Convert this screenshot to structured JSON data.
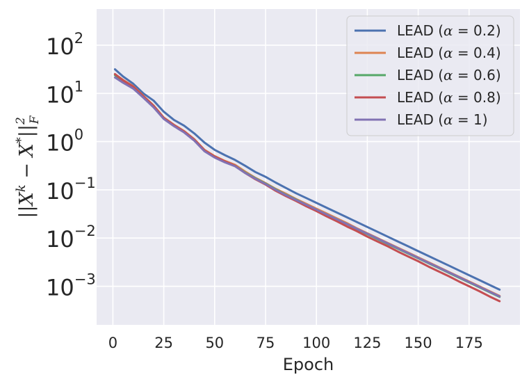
{
  "chart_data": {
    "type": "line",
    "title": "",
    "xlabel": "Epoch",
    "ylabel": "||X^k − X*||_F^2",
    "ylabel_parts": {
      "open": "||X",
      "k": "k",
      "minus": " − X",
      "star": "*",
      "close": "||",
      "sup": "2",
      "sub": "F"
    },
    "yscale": "log",
    "xlim": [
      -8,
      200
    ],
    "ylim_log10": [
      -3.8,
      2.75
    ],
    "xticks": [
      0,
      25,
      50,
      75,
      100,
      125,
      150,
      175
    ],
    "xtick_labels": [
      "0",
      "25",
      "50",
      "75",
      "100",
      "125",
      "150",
      "175"
    ],
    "yticks_log10": [
      -3,
      -2,
      -1,
      0,
      1,
      2
    ],
    "ytick_base": "10",
    "ytick_exponents": [
      "−3",
      "−2",
      "−1",
      "0",
      "1",
      "2"
    ],
    "grid": true,
    "legend_position": "top-right",
    "x": [
      1,
      5,
      10,
      15,
      20,
      25,
      30,
      35,
      40,
      45,
      50,
      55,
      60,
      65,
      70,
      75,
      80,
      85,
      90,
      95,
      100,
      105,
      110,
      115,
      120,
      125,
      130,
      135,
      140,
      145,
      150,
      155,
      160,
      165,
      170,
      175,
      180,
      185,
      190
    ],
    "series": [
      {
        "name": "LEAD (α = 0.2)",
        "prefix": "LEAD (",
        "alpha": "α",
        "suffix": " = 0.2)",
        "color": "#4c72b0",
        "log10_values": [
          1.5,
          1.35,
          1.2,
          1.0,
          0.85,
          0.62,
          0.45,
          0.33,
          0.17,
          -0.02,
          -0.17,
          -0.28,
          -0.38,
          -0.5,
          -0.63,
          -0.73,
          -0.85,
          -0.96,
          -1.07,
          -1.17,
          -1.27,
          -1.37,
          -1.47,
          -1.57,
          -1.67,
          -1.77,
          -1.87,
          -1.97,
          -2.07,
          -2.17,
          -2.27,
          -2.37,
          -2.47,
          -2.57,
          -2.67,
          -2.77,
          -2.87,
          -2.97,
          -3.07
        ]
      },
      {
        "name": "LEAD (α = 0.4)",
        "prefix": "LEAD (",
        "alpha": "α",
        "suffix": " = 0.4)",
        "color": "#dd8452",
        "log10_values": [
          1.4,
          1.28,
          1.15,
          0.95,
          0.75,
          0.5,
          0.35,
          0.22,
          0.05,
          -0.17,
          -0.3,
          -0.4,
          -0.48,
          -0.62,
          -0.75,
          -0.86,
          -0.98,
          -1.08,
          -1.19,
          -1.29,
          -1.39,
          -1.49,
          -1.59,
          -1.69,
          -1.8,
          -1.9,
          -2.0,
          -2.1,
          -2.2,
          -2.3,
          -2.4,
          -2.5,
          -2.6,
          -2.7,
          -2.8,
          -2.9,
          -3.0,
          -3.1,
          -3.2
        ]
      },
      {
        "name": "LEAD (α = 0.6)",
        "prefix": "LEAD (",
        "alpha": "α",
        "suffix": " = 0.6)",
        "color": "#55a868",
        "log10_values": [
          1.38,
          1.26,
          1.13,
          0.93,
          0.73,
          0.48,
          0.33,
          0.2,
          0.03,
          -0.19,
          -0.32,
          -0.42,
          -0.5,
          -0.64,
          -0.76,
          -0.87,
          -0.99,
          -1.1,
          -1.2,
          -1.31,
          -1.41,
          -1.51,
          -1.61,
          -1.71,
          -1.82,
          -1.92,
          -2.02,
          -2.12,
          -2.22,
          -2.32,
          -2.42,
          -2.52,
          -2.62,
          -2.72,
          -2.82,
          -2.92,
          -3.02,
          -3.12,
          -3.22
        ]
      },
      {
        "name": "LEAD (α = 0.8)",
        "prefix": "LEAD (",
        "alpha": "α",
        "suffix": " = 0.8)",
        "color": "#c44e52",
        "log10_values": [
          1.4,
          1.27,
          1.14,
          0.94,
          0.74,
          0.49,
          0.34,
          0.21,
          0.04,
          -0.18,
          -0.31,
          -0.41,
          -0.5,
          -0.65,
          -0.78,
          -0.89,
          -1.02,
          -1.13,
          -1.23,
          -1.34,
          -1.44,
          -1.55,
          -1.65,
          -1.76,
          -1.86,
          -1.97,
          -2.07,
          -2.17,
          -2.28,
          -2.38,
          -2.48,
          -2.59,
          -2.69,
          -2.79,
          -2.9,
          -3.0,
          -3.1,
          -3.21,
          -3.31
        ]
      },
      {
        "name": "LEAD (α = 1)",
        "prefix": "LEAD (",
        "alpha": "α",
        "suffix": " = 1)",
        "color": "#8172b3",
        "log10_values": [
          1.33,
          1.22,
          1.1,
          0.91,
          0.71,
          0.47,
          0.32,
          0.19,
          0.02,
          -0.2,
          -0.33,
          -0.43,
          -0.51,
          -0.65,
          -0.77,
          -0.88,
          -1.0,
          -1.11,
          -1.21,
          -1.31,
          -1.41,
          -1.51,
          -1.61,
          -1.71,
          -1.81,
          -1.91,
          -2.01,
          -2.11,
          -2.21,
          -2.31,
          -2.41,
          -2.51,
          -2.61,
          -2.71,
          -2.81,
          -2.91,
          -3.01,
          -3.11,
          -3.21
        ]
      }
    ]
  }
}
